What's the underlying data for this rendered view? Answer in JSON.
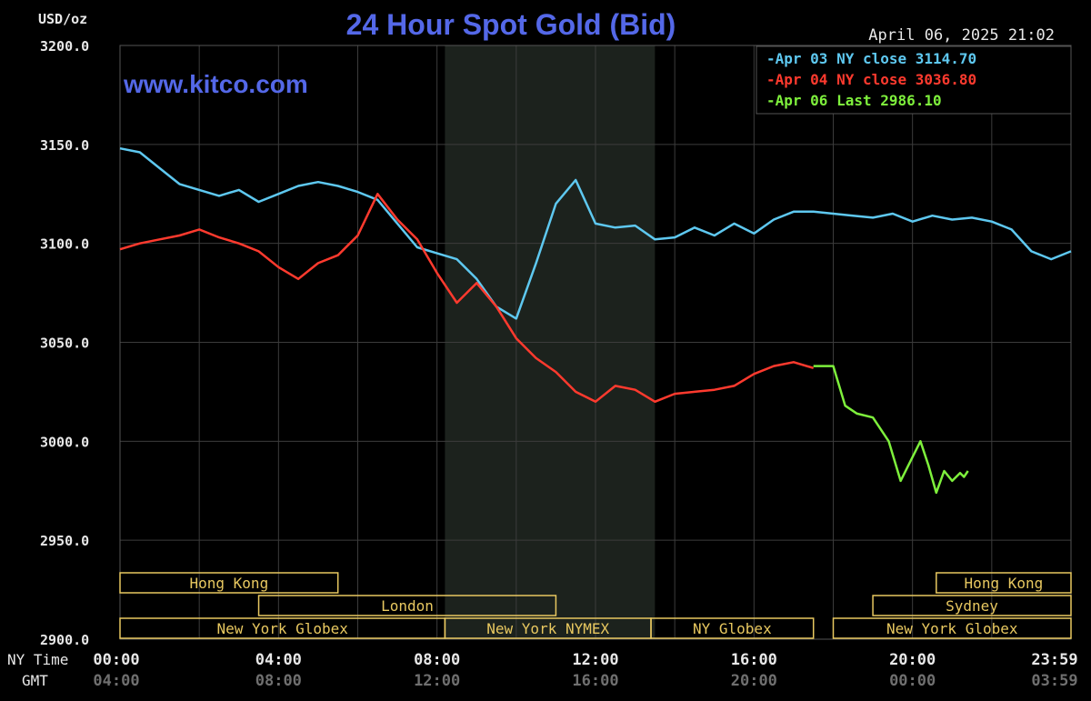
{
  "title": "24 Hour Spot Gold (Bid)",
  "watermark": "www.kitco.com",
  "timestamp": "April 06, 2025 21:02",
  "currency_label": "USD/oz",
  "x_row_labels": {
    "ny": "NY Time",
    "gmt": "GMT"
  },
  "colors": {
    "background": "#000000",
    "grid": "#3c3c3c",
    "title": "#5468e8",
    "axis_text": "#e8e8e8",
    "gmt_text": "#6f6f6f",
    "session_text": "#e8c860",
    "shaded_region": "#1c221d"
  },
  "legend": [
    {
      "label": "Apr 03 NY close 3114.70",
      "color": "#5ec8f0"
    },
    {
      "label": "Apr 04 NY close 3036.80",
      "color": "#ff3a2e"
    },
    {
      "label": "Apr 06 Last 2986.10",
      "color": "#7ef03c"
    }
  ],
  "chart_data": {
    "type": "line",
    "title": "24 Hour Spot Gold (Bid)",
    "xlabel": "NY Time",
    "ylabel": "USD/oz",
    "x_unit": "hours (NY time)",
    "xlim": [
      0,
      24
    ],
    "ylim": [
      2900,
      3200
    ],
    "y_ticks": [
      "3200.0",
      "3150.0",
      "3100.0",
      "3050.0",
      "3000.0",
      "2950.0",
      "2900.0"
    ],
    "x_ticks_ny": [
      "00:00",
      "04:00",
      "08:00",
      "12:00",
      "16:00",
      "20:00",
      "23:59"
    ],
    "x_ticks_gmt": [
      "04:00",
      "08:00",
      "12:00",
      "16:00",
      "20:00",
      "00:00",
      "03:59"
    ],
    "grid": true,
    "legend_position": "top-right",
    "shaded_window_hours": [
      8.2,
      13.5
    ],
    "series": [
      {
        "name": "Apr 03 NY close 3114.70",
        "x": [
          0,
          0.5,
          1,
          1.5,
          2,
          2.5,
          3,
          3.5,
          4,
          4.5,
          5,
          5.5,
          6,
          6.5,
          7,
          7.5,
          8,
          8.5,
          9,
          9.5,
          10,
          10.5,
          11,
          11.5,
          12,
          12.5,
          13,
          13.5,
          14,
          14.5,
          15,
          15.5,
          16,
          16.5,
          17,
          17.5,
          18,
          18.5,
          19,
          19.5,
          20,
          20.5,
          21,
          21.5,
          22,
          22.5,
          23,
          23.5,
          24
        ],
        "y": [
          3148,
          3146,
          3138,
          3130,
          3127,
          3124,
          3127,
          3121,
          3125,
          3129,
          3131,
          3129,
          3126,
          3122,
          3110,
          3098,
          3095,
          3092,
          3082,
          3068,
          3062,
          3090,
          3120,
          3132,
          3110,
          3108,
          3109,
          3102,
          3103,
          3108,
          3104,
          3110,
          3105,
          3112,
          3116,
          3116,
          3115,
          3114,
          3113,
          3115,
          3111,
          3114,
          3112,
          3113,
          3111,
          3107,
          3096,
          3092,
          3096
        ]
      },
      {
        "name": "Apr 04 NY close 3036.80",
        "x": [
          0,
          0.5,
          1,
          1.5,
          2,
          2.5,
          3,
          3.5,
          4,
          4.5,
          5,
          5.5,
          6,
          6.5,
          7,
          7.5,
          8,
          8.5,
          9,
          9.5,
          10,
          10.5,
          11,
          11.5,
          12,
          12.5,
          13,
          13.5,
          14,
          14.5,
          15,
          15.5,
          16,
          16.5,
          17,
          17.5
        ],
        "y": [
          3097,
          3100,
          3102,
          3104,
          3107,
          3103,
          3100,
          3096,
          3088,
          3082,
          3090,
          3094,
          3104,
          3125,
          3112,
          3102,
          3085,
          3070,
          3080,
          3068,
          3052,
          3042,
          3035,
          3025,
          3020,
          3028,
          3026,
          3020,
          3024,
          3025,
          3026,
          3028,
          3034,
          3038,
          3040,
          3037
        ]
      },
      {
        "name": "Apr 06 Last 2986.10",
        "x": [
          17.5,
          18,
          18.3,
          18.6,
          19,
          19.4,
          19.7,
          20,
          20.2,
          20.4,
          20.6,
          20.8,
          21.0,
          21.2,
          21.3,
          21.4
        ],
        "y": [
          3038,
          3038,
          3018,
          3014,
          3012,
          3000,
          2980,
          2992,
          3000,
          2988,
          2974,
          2985,
          2980,
          2984,
          2982,
          2985
        ]
      }
    ],
    "sessions": [
      {
        "label": "Hong Kong",
        "start": 0,
        "end": 5.5,
        "row": 0
      },
      {
        "label": "London",
        "start": 3.5,
        "end": 11,
        "row": 1
      },
      {
        "label": "New York Globex",
        "start": 0,
        "end": 8.2,
        "row": 2
      },
      {
        "label": "New York NYMEX",
        "start": 8.2,
        "end": 13.4,
        "row": 2
      },
      {
        "label": "NY Globex",
        "start": 13.4,
        "end": 17.5,
        "row": 2
      },
      {
        "label": "Hong Kong",
        "start": 20.6,
        "end": 24,
        "row": 0
      },
      {
        "label": "Sydney",
        "start": 19.0,
        "end": 24,
        "row": 1
      },
      {
        "label": "New York Globex",
        "start": 18.0,
        "end": 24,
        "row": 2
      }
    ]
  }
}
